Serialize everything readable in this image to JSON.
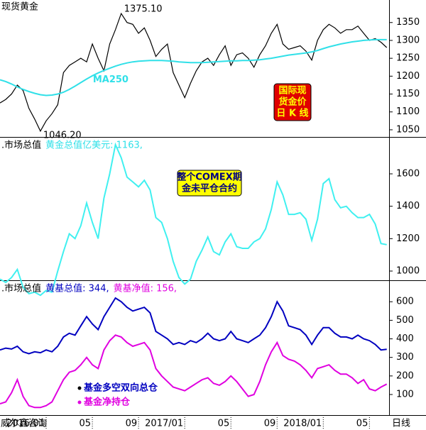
{
  "chart_data": [
    {
      "type": "line",
      "title": "现货黄金",
      "xlim": [
        0,
        33.7
      ],
      "ylim": [
        1030,
        1413
      ],
      "yticks": [
        1050,
        1100,
        1150,
        1200,
        1250,
        1300,
        1350
      ],
      "x": [
        0,
        0.5,
        1,
        1.5,
        2,
        2.5,
        3,
        3.5,
        4,
        4.5,
        5,
        5.5,
        6,
        6.5,
        7,
        7.5,
        8,
        8.5,
        9,
        9.5,
        10,
        10.5,
        11,
        11.5,
        12,
        12.5,
        13,
        13.5,
        14,
        14.5,
        15,
        15.5,
        16,
        16.5,
        17,
        17.5,
        18,
        18.5,
        19,
        19.5,
        20,
        20.5,
        21,
        21.5,
        22,
        22.5,
        23,
        23.5,
        24,
        24.5,
        25,
        25.5,
        26,
        26.5,
        27,
        27.5,
        28,
        28.5,
        29,
        29.5,
        30,
        30.5,
        31,
        31.5,
        32,
        32.5,
        33,
        33.5
      ],
      "series": [
        {
          "color": "#000000",
          "values": [
            1125,
            1135,
            1150,
            1175,
            1160,
            1110,
            1080,
            1046.2,
            1075,
            1095,
            1120,
            1210,
            1230,
            1240,
            1250,
            1240,
            1290,
            1250,
            1215,
            1290,
            1330,
            1375.1,
            1350,
            1345,
            1320,
            1335,
            1300,
            1255,
            1275,
            1290,
            1210,
            1175,
            1140,
            1180,
            1215,
            1240,
            1250,
            1230,
            1260,
            1285,
            1230,
            1260,
            1265,
            1250,
            1225,
            1260,
            1285,
            1320,
            1345,
            1290,
            1275,
            1280,
            1285,
            1270,
            1245,
            1300,
            1330,
            1345,
            1335,
            1320,
            1330,
            1330,
            1340,
            1320,
            1300,
            1305,
            1295,
            1280
          ]
        },
        {
          "color": "#30e0e8",
          "values": [
            1190,
            1185,
            1178,
            1170,
            1163,
            1157,
            1152,
            1148,
            1146,
            1147,
            1150,
            1155,
            1163,
            1172,
            1182,
            1192,
            1201,
            1209,
            1216,
            1222,
            1228,
            1233,
            1237,
            1240,
            1242,
            1243,
            1244,
            1244,
            1244,
            1243,
            1242,
            1240,
            1239,
            1238,
            1238,
            1238,
            1239,
            1240,
            1241,
            1242,
            1243,
            1243,
            1244,
            1244,
            1245,
            1246,
            1248,
            1250,
            1253,
            1256,
            1259,
            1261,
            1263,
            1265,
            1268,
            1272,
            1277,
            1282,
            1286,
            1290,
            1293,
            1296,
            1298,
            1300,
            1301,
            1302,
            1302,
            1302
          ]
        }
      ],
      "annotations": [
        {
          "text": "1375.10",
          "x": 10.5,
          "y": 1375.1,
          "color": "#000000"
        },
        {
          "text": "1046.20",
          "x": 3.5,
          "y": 1046.2,
          "color": "#000000"
        },
        {
          "text": "MA250",
          "x": 7.8,
          "y": 1178,
          "color": "#30e0e8"
        }
      ],
      "box": {
        "lines": [
          "国际现",
          "货金价",
          "日 K 线"
        ],
        "bg": "#e00000",
        "fg": "#ffff00"
      }
    },
    {
      "type": "line",
      "title": ".市场总值",
      "header": [
        {
          "text": "黄金总值亿美元: 1163,",
          "color": "#30e0e8"
        }
      ],
      "xlim": [
        0,
        33.7
      ],
      "ylim": [
        943,
        1819
      ],
      "yticks": [
        1000,
        1200,
        1400,
        1600
      ],
      "x": [
        0,
        0.5,
        1,
        1.5,
        2,
        2.5,
        3,
        3.5,
        4,
        4.5,
        5,
        5.5,
        6,
        6.5,
        7,
        7.5,
        8,
        8.5,
        9,
        9.5,
        10,
        10.5,
        11,
        11.5,
        12,
        12.5,
        13,
        13.5,
        14,
        14.5,
        15,
        15.5,
        16,
        16.5,
        17,
        17.5,
        18,
        18.5,
        19,
        19.5,
        20,
        20.5,
        21,
        21.5,
        22,
        22.5,
        23,
        23.5,
        24,
        24.5,
        25,
        25.5,
        26,
        26.5,
        27,
        27.5,
        28,
        28.5,
        29,
        29.5,
        30,
        30.5,
        31,
        31.5,
        32,
        32.5,
        33,
        33.5
      ],
      "series": [
        {
          "color": "#40f0f0",
          "values": [
            950,
            930,
            960,
            1010,
            900,
            860,
            870,
            850,
            880,
            870,
            1000,
            1120,
            1230,
            1200,
            1280,
            1420,
            1300,
            1200,
            1450,
            1600,
            1780,
            1700,
            1580,
            1550,
            1520,
            1560,
            1500,
            1330,
            1300,
            1200,
            1060,
            960,
            920,
            950,
            1060,
            1130,
            1210,
            1120,
            1100,
            1180,
            1230,
            1150,
            1140,
            1140,
            1180,
            1200,
            1260,
            1380,
            1550,
            1470,
            1350,
            1350,
            1360,
            1320,
            1190,
            1320,
            1540,
            1570,
            1440,
            1390,
            1400,
            1360,
            1330,
            1330,
            1350,
            1290,
            1170,
            1163
          ]
        }
      ],
      "box": {
        "lines": [
          "整个COMEX期",
          "金未平仓合约"
        ],
        "bg": "#ffff00",
        "fg": "#000080"
      }
    },
    {
      "type": "line",
      "title": ".市场总值",
      "header": [
        {
          "text": "黄基总值: 344,",
          "color": "#0000c0"
        },
        {
          "text": "黄基净值: 156,",
          "color": "#e000e0"
        }
      ],
      "xlim": [
        0,
        33.7
      ],
      "ylim": [
        -11,
        708
      ],
      "yticks": [
        100,
        200,
        300,
        400,
        500,
        600
      ],
      "xticks": [
        {
          "value": 4,
          "label": "2016/01"
        },
        {
          "value": 8,
          "label": "05"
        },
        {
          "value": 12,
          "label": "09"
        },
        {
          "value": 16,
          "label": "2017/01"
        },
        {
          "value": 20,
          "label": "05"
        },
        {
          "value": 24,
          "label": "09"
        },
        {
          "value": 28,
          "label": "2018/01"
        },
        {
          "value": 32,
          "label": "05"
        }
      ],
      "source": "威尔鑫咨询",
      "xlabel": "日线",
      "x": [
        0,
        0.5,
        1,
        1.5,
        2,
        2.5,
        3,
        3.5,
        4,
        4.5,
        5,
        5.5,
        6,
        6.5,
        7,
        7.5,
        8,
        8.5,
        9,
        9.5,
        10,
        10.5,
        11,
        11.5,
        12,
        12.5,
        13,
        13.5,
        14,
        14.5,
        15,
        15.5,
        16,
        16.5,
        17,
        17.5,
        18,
        18.5,
        19,
        19.5,
        20,
        20.5,
        21,
        21.5,
        22,
        22.5,
        23,
        23.5,
        24,
        24.5,
        25,
        25.5,
        26,
        26.5,
        27,
        27.5,
        28,
        28.5,
        29,
        29.5,
        30,
        30.5,
        31,
        31.5,
        32,
        32.5,
        33,
        33.5
      ],
      "series": [
        {
          "name": "基金多空双向总仓",
          "color": "#0000c0",
          "values": [
            340,
            350,
            345,
            360,
            330,
            320,
            330,
            325,
            340,
            330,
            360,
            410,
            430,
            420,
            470,
            520,
            480,
            450,
            520,
            570,
            620,
            600,
            570,
            550,
            560,
            570,
            540,
            440,
            420,
            400,
            370,
            380,
            370,
            390,
            380,
            400,
            430,
            400,
            390,
            400,
            440,
            400,
            390,
            380,
            400,
            420,
            460,
            520,
            600,
            550,
            470,
            460,
            450,
            420,
            370,
            420,
            460,
            460,
            430,
            410,
            410,
            400,
            420,
            400,
            390,
            370,
            340,
            344
          ]
        },
        {
          "name": "基金净持仓",
          "color": "#e000e0",
          "values": [
            50,
            60,
            110,
            180,
            90,
            40,
            30,
            30,
            40,
            60,
            120,
            180,
            220,
            230,
            260,
            300,
            260,
            240,
            340,
            390,
            420,
            410,
            380,
            360,
            370,
            380,
            340,
            240,
            200,
            170,
            140,
            130,
            120,
            140,
            160,
            180,
            190,
            160,
            150,
            170,
            200,
            170,
            130,
            90,
            100,
            170,
            260,
            330,
            380,
            310,
            290,
            280,
            260,
            230,
            190,
            240,
            250,
            260,
            230,
            210,
            210,
            190,
            160,
            180,
            130,
            120,
            140,
            156
          ]
        }
      ]
    }
  ]
}
